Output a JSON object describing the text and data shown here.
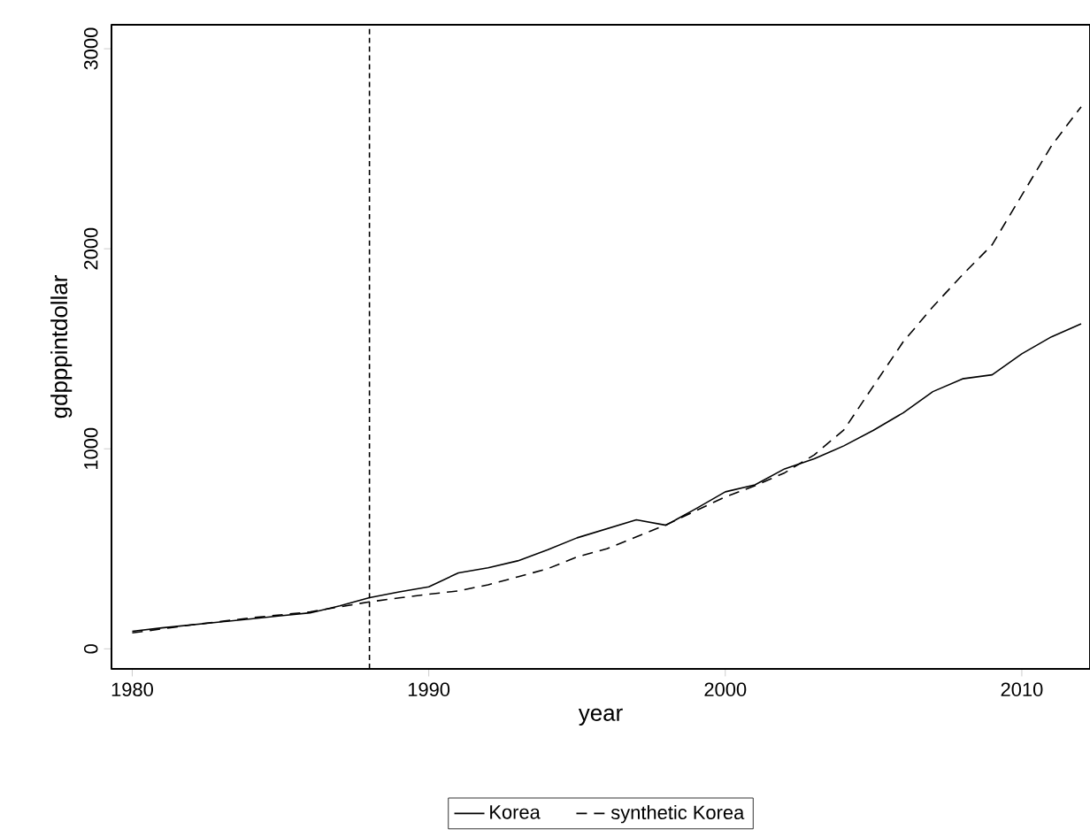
{
  "chart_data": {
    "type": "line",
    "xlabel": "year",
    "ylabel": "gdpppintdollar",
    "x": [
      1980,
      1981,
      1982,
      1983,
      1984,
      1985,
      1986,
      1987,
      1988,
      1989,
      1990,
      1991,
      1992,
      1993,
      1994,
      1995,
      1996,
      1997,
      1998,
      1999,
      2000,
      2001,
      2002,
      2003,
      2004,
      2005,
      2006,
      2007,
      2008,
      2009,
      2010,
      2011,
      2012
    ],
    "series": [
      {
        "name": "Korea",
        "color": "#000000",
        "line_style": "solid",
        "values": [
          88,
          105,
          120,
          135,
          150,
          165,
          180,
          215,
          256,
          285,
          310,
          380,
          405,
          440,
          495,
          555,
          600,
          645,
          618,
          700,
          785,
          820,
          900,
          950,
          1015,
          1093,
          1180,
          1286,
          1350,
          1370,
          1475,
          1560,
          1625
        ]
      },
      {
        "name": "synthetic Korea",
        "color": "#000000",
        "line_style": "dashed",
        "values": [
          80,
          100,
          120,
          137,
          155,
          170,
          185,
          210,
          235,
          255,
          273,
          290,
          320,
          360,
          400,
          460,
          500,
          560,
          620,
          690,
          760,
          815,
          880,
          970,
          1095,
          1315,
          1535,
          1710,
          1870,
          2020,
          2268,
          2515,
          2710
        ]
      }
    ],
    "xlim": [
      1979.3,
      2012.3
    ],
    "ylim": [
      -100,
      3120
    ],
    "xticks": [
      1980,
      1990,
      2000,
      2010
    ],
    "yticks": [
      0,
      1000,
      2000,
      3000
    ],
    "ref_lines": [
      {
        "axis": "x",
        "value": 1988,
        "color": "#000000",
        "line_style": "dashed"
      }
    ],
    "grid": false,
    "legend": "bottom",
    "marker": "none"
  }
}
